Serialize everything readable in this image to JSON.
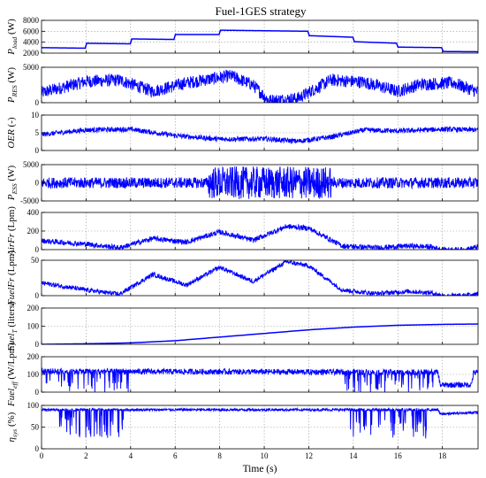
{
  "title": "Fuel-1GES strategy",
  "xlabel": "Time (s)",
  "colors": {
    "trace": "#0000ff",
    "axis": "#000000",
    "grid": "#9a9a9a",
    "background": "#ffffff"
  },
  "chart_data": {
    "type": "line",
    "title": "Fuel-1GES strategy",
    "xlabel": "Time (s)",
    "xlim": [
      0,
      19.6
    ],
    "xticks": [
      "0",
      "2",
      "4",
      "6",
      "8",
      "10",
      "12",
      "14",
      "16",
      "18"
    ],
    "xtick_values": [
      0,
      2,
      4,
      6,
      8,
      10,
      12,
      14,
      16,
      18
    ],
    "grid": true,
    "panels": [
      {
        "ylabel": "P_load (W)",
        "ylabel_main": "P",
        "ylabel_sub": "load",
        "ylabel_unit": " (W)",
        "ylim": [
          2000,
          8000
        ],
        "yticks": [
          "2000",
          "4000",
          "6000",
          "8000"
        ],
        "ytick_values": [
          2000,
          4000,
          6000,
          8000
        ],
        "noise": 0,
        "series": [
          {
            "x": [
              0,
              2,
              2,
              4,
              4,
              6,
              6,
              8,
              8,
              12,
              12,
              14,
              14,
              16,
              16,
              18,
              18,
              19.6
            ],
            "y": [
              3000,
              2900,
              3800,
              3700,
              4600,
              4500,
              5400,
              5400,
              6200,
              6000,
              5200,
              4900,
              4100,
              3800,
              3100,
              3000,
              2300,
              2250
            ]
          }
        ]
      },
      {
        "ylabel": "P_RES (W)",
        "ylabel_main": "P",
        "ylabel_sub": "RES",
        "ylabel_unit": " (W)",
        "ylim": [
          0,
          5000
        ],
        "yticks": [
          "0",
          "5000"
        ],
        "ytick_values": [
          0,
          5000
        ],
        "noise": 900,
        "series": [
          {
            "x": [
              0,
              2,
              3.5,
              5,
              6.5,
              8.5,
              9.5,
              10.2,
              11.5,
              13,
              14.5,
              16,
              17,
              18.5,
              19.6
            ],
            "y": [
              1400,
              3000,
              3200,
              1600,
              2800,
              3800,
              2500,
              300,
              600,
              3200,
              2900,
              1600,
              2600,
              2800,
              1500
            ]
          }
        ]
      },
      {
        "ylabel": "OER (-)",
        "ylabel_main": "OER",
        "ylabel_sub": "",
        "ylabel_unit": " (-)",
        "ylim": [
          0,
          10
        ],
        "yticks": [
          "0",
          "5",
          "10"
        ],
        "ytick_values": [
          0,
          5,
          10
        ],
        "noise": 0.7,
        "series": [
          {
            "x": [
              0,
              2,
              4,
              6,
              8,
              10,
              11.5,
              13,
              14.5,
              16,
              18,
              19.6
            ],
            "y": [
              4.5,
              5.8,
              6.0,
              4.2,
              3.2,
              3.3,
              2.6,
              3.8,
              5.8,
              5.5,
              6.0,
              5.8
            ]
          }
        ]
      },
      {
        "ylabel": "P_ESS (W)",
        "ylabel_main": "P",
        "ylabel_sub": "ESS",
        "ylabel_unit": " (W)",
        "ylim": [
          -5000,
          5000
        ],
        "yticks": [
          "-5000",
          "0",
          "5000"
        ],
        "ytick_values": [
          -5000,
          0,
          5000
        ],
        "noise": 1500,
        "noise_boost": [
          [
            7.5,
            13,
            3.0
          ]
        ],
        "series": [
          {
            "x": [
              0,
              19.6
            ],
            "y": [
              0,
              0
            ]
          }
        ]
      },
      {
        "ylabel": "AirFr (Lpm)",
        "ylabel_main": "AirFr",
        "ylabel_sub": "",
        "ylabel_unit": " (Lpm)",
        "ylim": [
          0,
          400
        ],
        "yticks": [
          "0",
          "200",
          "400"
        ],
        "ytick_values": [
          0,
          200,
          400
        ],
        "noise": 28,
        "series": [
          {
            "x": [
              0,
              2,
              3.5,
              5,
              6.5,
              8,
              9.5,
              11,
              12,
              13.5,
              15,
              16.5,
              17.5,
              18,
              19,
              19.6
            ],
            "y": [
              95,
              60,
              20,
              120,
              80,
              190,
              100,
              250,
              230,
              40,
              20,
              40,
              30,
              0,
              0,
              30
            ]
          }
        ]
      },
      {
        "ylabel": "FuelFr (Lpm)",
        "ylabel_main": "FuelFr",
        "ylabel_sub": "",
        "ylabel_unit": " (Lpm)",
        "ylim": [
          0,
          50
        ],
        "yticks": [
          "0",
          "50"
        ],
        "ytick_values": [
          0,
          50
        ],
        "noise": 3.2,
        "series": [
          {
            "x": [
              0,
              2,
              3.5,
              5,
              6.5,
              8,
              9.5,
              11,
              12,
              13.5,
              15,
              16.5,
              17.5,
              18,
              19,
              19.6
            ],
            "y": [
              18,
              8,
              2,
              30,
              15,
              40,
              20,
              48,
              42,
              8,
              3,
              6,
              4,
              0,
              0,
              4
            ]
          }
        ]
      },
      {
        "ylabel": "Fuel_T (liters)",
        "ylabel_main": "Fuel",
        "ylabel_sub": "T",
        "ylabel_unit": " (liters)",
        "ylim": [
          0,
          200
        ],
        "yticks": [
          "0",
          "100",
          "200"
        ],
        "ytick_values": [
          0,
          100,
          200
        ],
        "noise": 0,
        "series": [
          {
            "x": [
              0,
              2,
              4,
              6,
              8,
              10,
              12,
              14,
              16,
              18,
              19.6
            ],
            "y": [
              0,
              3,
              8,
              20,
              40,
              60,
              80,
              95,
              105,
              110,
              112
            ]
          }
        ]
      },
      {
        "ylabel": "Fuel_eff (W/Lpm)",
        "ylabel_main": "Fuel",
        "ylabel_sub": "eff",
        "ylabel_unit": " (W/Lpm)",
        "ylim": [
          0,
          200
        ],
        "yticks": [
          "0",
          "100",
          "200"
        ],
        "ytick_values": [
          0,
          100,
          200
        ],
        "noise": 16,
        "dips": [
          [
            0.2,
            4.0,
            0.18
          ],
          [
            13.6,
            17.6,
            0.16
          ]
        ],
        "dip_depth": 90,
        "series": [
          {
            "x": [
              0,
              17.8,
              17.9,
              19.3,
              19.4,
              19.6
            ],
            "y": [
              118,
              112,
              40,
              42,
              110,
              112
            ]
          }
        ]
      },
      {
        "ylabel": "η_sys (%)",
        "ylabel_main": "η",
        "ylabel_sub": "sys",
        "ylabel_unit": " (%)",
        "ylim": [
          0,
          100
        ],
        "yticks": [
          "0",
          "50",
          "100"
        ],
        "ytick_values": [
          0,
          50,
          100
        ],
        "noise": 3,
        "dips": [
          [
            0.8,
            3.8,
            0.2
          ],
          [
            13.8,
            17.4,
            0.18
          ]
        ],
        "dip_depth": 50,
        "series": [
          {
            "x": [
              0,
              17.8,
              17.9,
              19.6
            ],
            "y": [
              90,
              90,
              80,
              84
            ]
          }
        ]
      }
    ]
  }
}
